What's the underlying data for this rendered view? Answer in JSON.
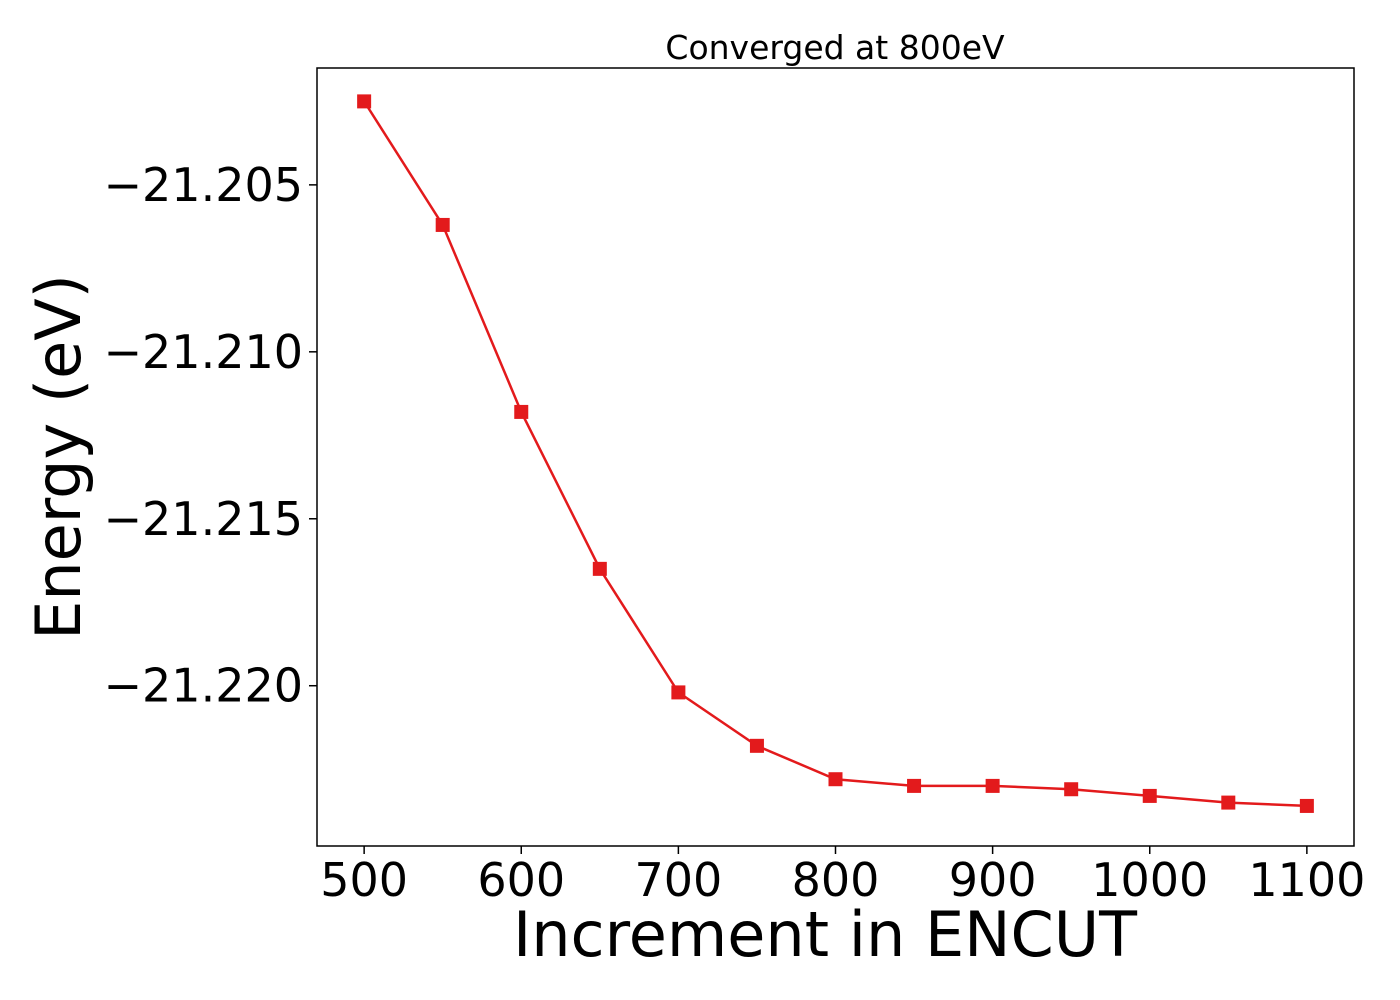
{
  "chart_data": {
    "type": "line",
    "title": "Converged at 800eV",
    "xlabel": "Increment in ENCUT",
    "ylabel": "Energy (eV)",
    "x": [
      500,
      550,
      600,
      650,
      700,
      750,
      800,
      850,
      900,
      950,
      1000,
      1050,
      1100
    ],
    "series": [
      {
        "values": [
          -21.2025,
          -21.2062,
          -21.2118,
          -21.2165,
          -21.2202,
          -21.2218,
          -21.2228,
          -21.223,
          -21.223,
          -21.2231,
          -21.2233,
          -21.2235,
          -21.2236
        ],
        "color": "#e31a1c",
        "marker": "square"
      }
    ],
    "xlim": [
      470,
      1130
    ],
    "ylim": [
      -21.2248,
      -21.2015
    ],
    "xticks": [
      500,
      600,
      700,
      800,
      900,
      1000,
      1100
    ],
    "xtick_labels": [
      "500",
      "600",
      "700",
      "800",
      "900",
      "1000",
      "1100"
    ],
    "yticks": [
      -21.205,
      -21.21,
      -21.215,
      -21.22
    ],
    "ytick_labels": [
      "−21.205",
      "−21.210",
      "−21.215",
      "−21.220"
    ],
    "grid": false,
    "legend": "none"
  }
}
